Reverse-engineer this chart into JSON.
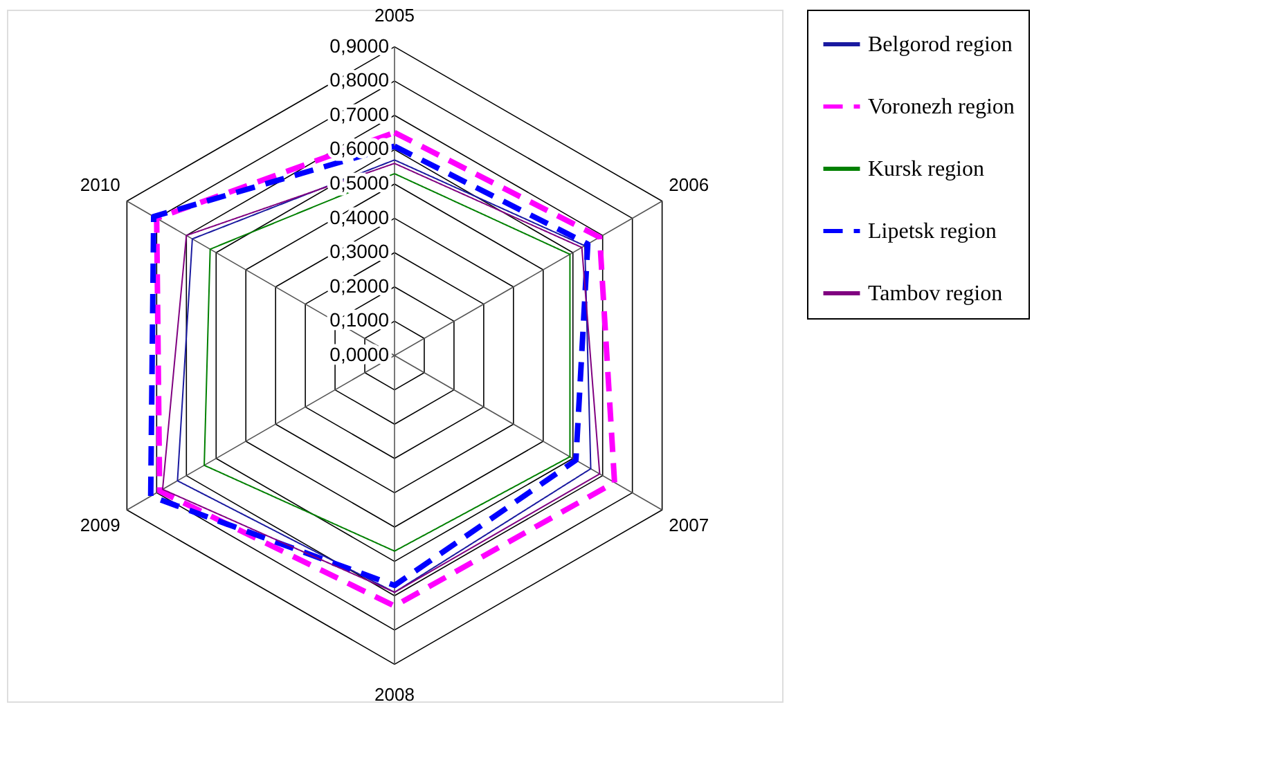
{
  "chart_data": {
    "type": "radar",
    "categories": [
      "2005",
      "2006",
      "2007",
      "2008",
      "2009",
      "2010"
    ],
    "series": [
      {
        "name": "Belgorod region",
        "color": "#1a1aa0",
        "line_style": "solid",
        "values": [
          0.57,
          0.64,
          0.66,
          0.69,
          0.73,
          0.68
        ]
      },
      {
        "name": "Voronezh region",
        "color": "#ff00ff",
        "line_style": "dashed",
        "values": [
          0.65,
          0.69,
          0.74,
          0.73,
          0.79,
          0.8
        ]
      },
      {
        "name": "Kursk region",
        "color": "#008000",
        "line_style": "solid",
        "values": [
          0.53,
          0.59,
          0.59,
          0.57,
          0.64,
          0.62
        ]
      },
      {
        "name": "Lipetsk region",
        "color": "#0000ff",
        "line_style": "dashed",
        "values": [
          0.61,
          0.65,
          0.61,
          0.67,
          0.82,
          0.81
        ]
      },
      {
        "name": "Tambov region",
        "color": "#800080",
        "line_style": "solid",
        "values": [
          0.56,
          0.63,
          0.69,
          0.69,
          0.78,
          0.7
        ]
      }
    ],
    "ylim": [
      0,
      0.9
    ],
    "yticks": [
      {
        "value": 0,
        "label": "0,0000"
      },
      {
        "value": 0.1,
        "label": "0,1000"
      },
      {
        "value": 0.2,
        "label": "0,2000"
      },
      {
        "value": 0.3,
        "label": "0,3000"
      },
      {
        "value": 0.4,
        "label": "0,4000"
      },
      {
        "value": 0.5,
        "label": "0,5000"
      },
      {
        "value": 0.6,
        "label": "0,6000"
      },
      {
        "value": 0.7,
        "label": "0,7000"
      },
      {
        "value": 0.8,
        "label": "0,8000"
      },
      {
        "value": 0.9,
        "label": "0,9000"
      }
    ],
    "grid": true,
    "legend": "right"
  }
}
